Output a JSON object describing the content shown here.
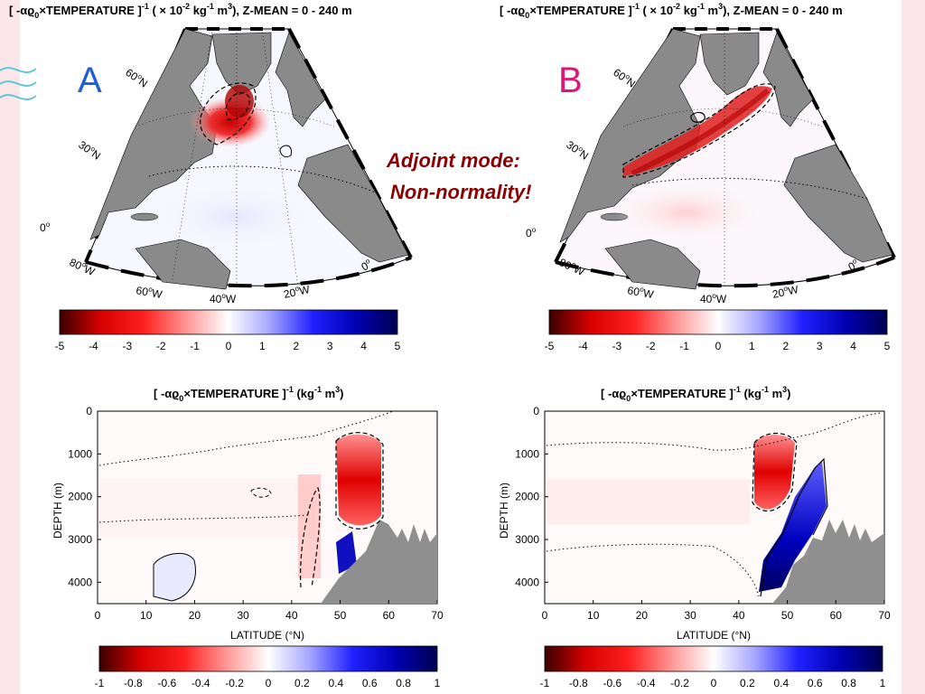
{
  "slide": {
    "annotation_line1": "Adjoint mode:",
    "annotation_line2": "Non-normality!",
    "annotation_color": "#8b0000",
    "panel_letters": [
      {
        "text": "A",
        "color": "#1f5fd6"
      },
      {
        "text": "B",
        "color": "#e0157a"
      }
    ]
  },
  "map_panels": [
    {
      "title_prefix": "[ -αϱ",
      "title_sub": "0",
      "title_main": "×TEMPERATURE ]",
      "title_sup": "-1",
      "title_rest": " ( × 10",
      "title_sup2": "-2",
      "title_units": " kg",
      "title_sup3": "-1",
      "title_units2": " m",
      "title_sup4": "3",
      "title_end": "), Z-MEAN = 0 - 240 m",
      "lat_labels": [
        "60",
        "30",
        "0"
      ],
      "lat_suffix": "N",
      "lon_labels": [
        "80",
        "60",
        "40",
        "20",
        "0"
      ],
      "lon_suffix": "W",
      "deg": "o"
    },
    {
      "title_prefix": "[ -αϱ",
      "title_sub": "0",
      "title_main": "×TEMPERATURE ]",
      "title_sup": "-1",
      "title_rest": " ( × 10",
      "title_sup2": "-2",
      "title_units": " kg",
      "title_sup3": "-1",
      "title_units2": " m",
      "title_sup4": "3",
      "title_end": "), Z-MEAN = 0 - 240 m",
      "lat_labels": [
        "60",
        "30",
        "0"
      ],
      "lat_suffix": "N",
      "lon_labels": [
        "80",
        "60",
        "40",
        "20",
        "0"
      ],
      "lon_suffix": "W",
      "deg": "o"
    }
  ],
  "colorbars": {
    "top_ticks": [
      "-5",
      "-4",
      "-3",
      "-2",
      "-1",
      "0",
      "1",
      "2",
      "3",
      "4",
      "5"
    ],
    "bottom_ticks": [
      "-1",
      "-0.8",
      "-0.6",
      "-0.4",
      "-0.2",
      "0",
      "0.2",
      "0.4",
      "0.6",
      "0.8",
      "1"
    ],
    "colors": [
      "#3a0000",
      "#d50000",
      "#ff1a1a",
      "#ff8a8a",
      "#ffffff",
      "#9a9aff",
      "#1414ff",
      "#000060"
    ]
  },
  "section_panels": [
    {
      "title_prefix": "[ -αϱ",
      "title_sub": "0",
      "title_main": "×TEMPERATURE ]",
      "title_sup": "-1",
      "title_units": " (kg",
      "title_sup2": "-1",
      "title_units2": " m",
      "title_sup3": "3",
      "title_end": ")",
      "ylabel": "DEPTH  (m)",
      "xlabel": "LATITUDE  (°N)",
      "x_ticks": [
        "0",
        "10",
        "20",
        "30",
        "40",
        "50",
        "60",
        "70"
      ],
      "y_ticks": [
        "0",
        "1000",
        "2000",
        "3000",
        "4000"
      ]
    },
    {
      "title_prefix": "[ -αϱ",
      "title_sub": "0",
      "title_main": "×TEMPERATURE ]",
      "title_sup": "-1",
      "title_units": " (kg",
      "title_sup2": "-1",
      "title_units2": " m",
      "title_sup3": "3",
      "title_end": ")",
      "ylabel": "DEPTH  (m)",
      "xlabel": "LATITUDE  (°N)",
      "x_ticks": [
        "0",
        "10",
        "20",
        "30",
        "40",
        "50",
        "60",
        "70"
      ],
      "y_ticks": [
        "0",
        "1000",
        "2000",
        "3000",
        "4000"
      ]
    }
  ]
}
